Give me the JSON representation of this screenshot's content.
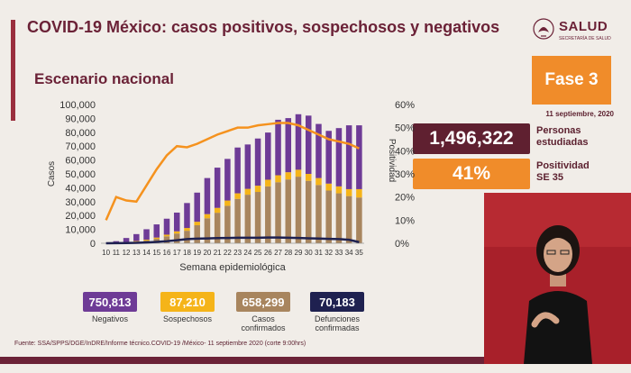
{
  "header": {
    "title": "COVID-19 México: casos positivos, sospechosos y negativos",
    "subtitle": "Escenario nacional"
  },
  "logo": {
    "name": "SALUD",
    "tagline": "SECRETARÍA DE SALUD"
  },
  "phase": {
    "label": "Fase 3",
    "date": "11 septiembre, 2020"
  },
  "stats": {
    "persons_value": "1,496,322",
    "persons_label_1": "Personas",
    "persons_label_2": "estudiadas",
    "positivity_value": "41%",
    "positivity_label_1": "Positividad",
    "positivity_label_2": "SE 35"
  },
  "summary": [
    {
      "value": "750,813",
      "label_1": "Negativos",
      "label_2": "",
      "color": "#6e3b96"
    },
    {
      "value": "87,210",
      "label_1": "Sospechosos",
      "label_2": "",
      "color": "#f5b419"
    },
    {
      "value": "658,299",
      "label_1": "Casos",
      "label_2": "confirmados",
      "color": "#a8855e"
    },
    {
      "value": "70,183",
      "label_1": "Defunciones",
      "label_2": "confirmadas",
      "color": "#1f2150"
    }
  ],
  "source": "Fuente: SSA/SPPS/DGE/InDRE/Informe técnico.COVID-19 /México- 11 septiembre 2020 (corte 9:00hrs)",
  "colors": {
    "confirmed": "#a8855e",
    "suspected": "#f5b419",
    "negative": "#6e3b96",
    "deaths": "#1f2150",
    "positivity": "#f5921e",
    "accent": "#6b2237"
  },
  "chart_data": {
    "type": "bar",
    "xlabel": "Semana epidemiológica",
    "ylabel": "Casos",
    "y2label": "Positividad",
    "ylim": [
      0,
      100000
    ],
    "y2lim": [
      0,
      60
    ],
    "yticks": [
      "0",
      "10,000",
      "20,000",
      "30,000",
      "40,000",
      "50,000",
      "60,000",
      "70,000",
      "80,000",
      "90,000",
      "100,000"
    ],
    "y2ticks": [
      "0%",
      "10%",
      "20%",
      "30%",
      "40%",
      "50%",
      "60%"
    ],
    "categories": [
      "10",
      "11",
      "12",
      "13",
      "14",
      "15",
      "16",
      "17",
      "18",
      "19",
      "20",
      "21",
      "22",
      "23",
      "24",
      "25",
      "26",
      "27",
      "28",
      "29",
      "30",
      "31",
      "32",
      "33",
      "34",
      "35"
    ],
    "series": [
      {
        "name": "Casos confirmados",
        "values": [
          0,
          200,
          600,
          1200,
          2000,
          3200,
          5000,
          7000,
          9000,
          13000,
          18000,
          22000,
          27000,
          32000,
          35000,
          37000,
          41000,
          44000,
          46000,
          48000,
          45000,
          42000,
          38000,
          36000,
          34000,
          33000
        ]
      },
      {
        "name": "Sospechosos",
        "values": [
          0,
          100,
          200,
          400,
          600,
          900,
          1200,
          1600,
          2000,
          2500,
          3000,
          3500,
          3800,
          4000,
          4200,
          4500,
          4800,
          5000,
          5200,
          5000,
          5000,
          5000,
          5000,
          5000,
          5000,
          6000
        ]
      },
      {
        "name": "Negativos",
        "values": [
          0,
          1200,
          3000,
          5000,
          7500,
          9500,
          11500,
          13500,
          18000,
          21000,
          26000,
          29000,
          30000,
          33000,
          32000,
          34000,
          34000,
          40000,
          39000,
          40000,
          42000,
          39000,
          38000,
          42000,
          46000,
          46000
        ]
      },
      {
        "name": "Defunciones",
        "values": [
          0,
          100,
          200,
          300,
          600,
          1000,
          1500,
          2200,
          3000,
          3300,
          3500,
          3700,
          3800,
          4000,
          4000,
          4000,
          4100,
          4100,
          4000,
          3800,
          3600,
          3400,
          3200,
          3000,
          2500,
          800
        ]
      },
      {
        "name": "Positividad",
        "values": [
          10,
          20,
          18.5,
          18,
          25,
          32,
          38,
          42,
          41.5,
          43,
          45,
          47,
          48.5,
          50,
          50,
          51,
          51.5,
          52,
          52,
          51,
          49,
          47,
          45,
          44,
          43,
          41
        ]
      }
    ]
  }
}
